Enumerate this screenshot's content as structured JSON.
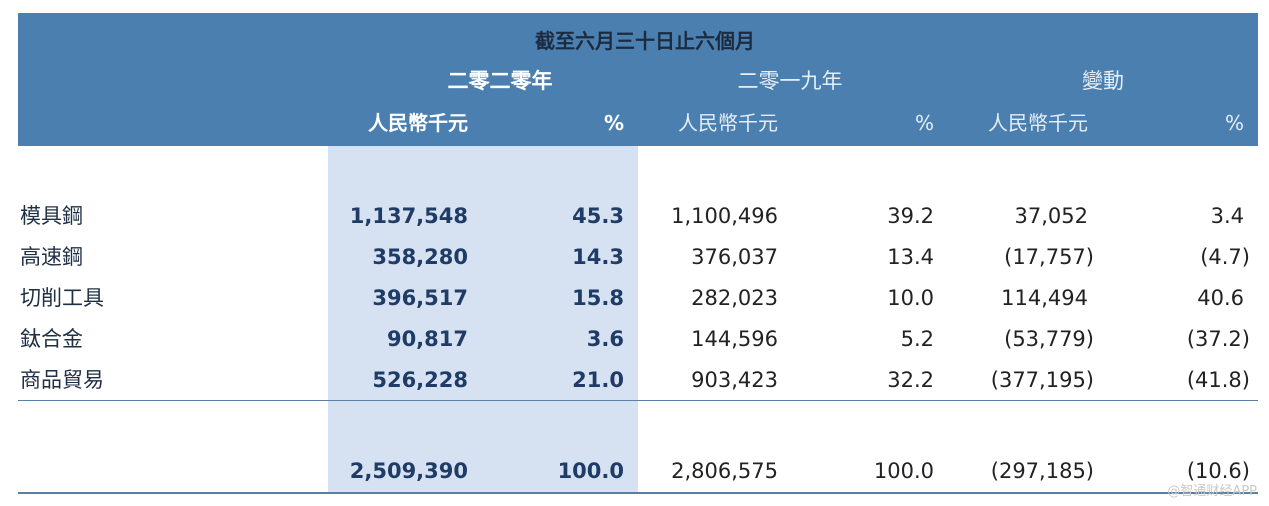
{
  "header": {
    "period": "截至六月三十日止六個月",
    "year_2020": "二零二零年",
    "year_2019": "二零一九年",
    "change": "變動",
    "unit_rmb": "人民幣千元",
    "unit_pct": "%"
  },
  "rows": [
    {
      "label": "模具鋼",
      "v2020": "1,137,548",
      "p2020": "45.3",
      "v2019": "1,100,496",
      "p2019": "39.2",
      "chg": "37,052",
      "chg_pct": "3.4"
    },
    {
      "label": "高速鋼",
      "v2020": "358,280",
      "p2020": "14.3",
      "v2019": "376,037",
      "p2019": "13.4",
      "chg": "(17,757)",
      "chg_pct": "(4.7)"
    },
    {
      "label": "切削工具",
      "v2020": "396,517",
      "p2020": "15.8",
      "v2019": "282,023",
      "p2019": "10.0",
      "chg": "114,494",
      "chg_pct": "40.6"
    },
    {
      "label": "鈦合金",
      "v2020": "90,817",
      "p2020": "3.6",
      "v2019": "144,596",
      "p2019": "5.2",
      "chg": "(53,779)",
      "chg_pct": "(37.2)"
    },
    {
      "label": "商品貿易",
      "v2020": "526,228",
      "p2020": "21.0",
      "v2019": "903,423",
      "p2019": "32.2",
      "chg": "(377,195)",
      "chg_pct": "(41.8)"
    }
  ],
  "total": {
    "v2020": "2,509,390",
    "p2020": "100.0",
    "v2019": "2,806,575",
    "p2019": "100.0",
    "chg": "(297,185)",
    "chg_pct": "(10.6)"
  },
  "watermark": "@智通财经APP"
}
